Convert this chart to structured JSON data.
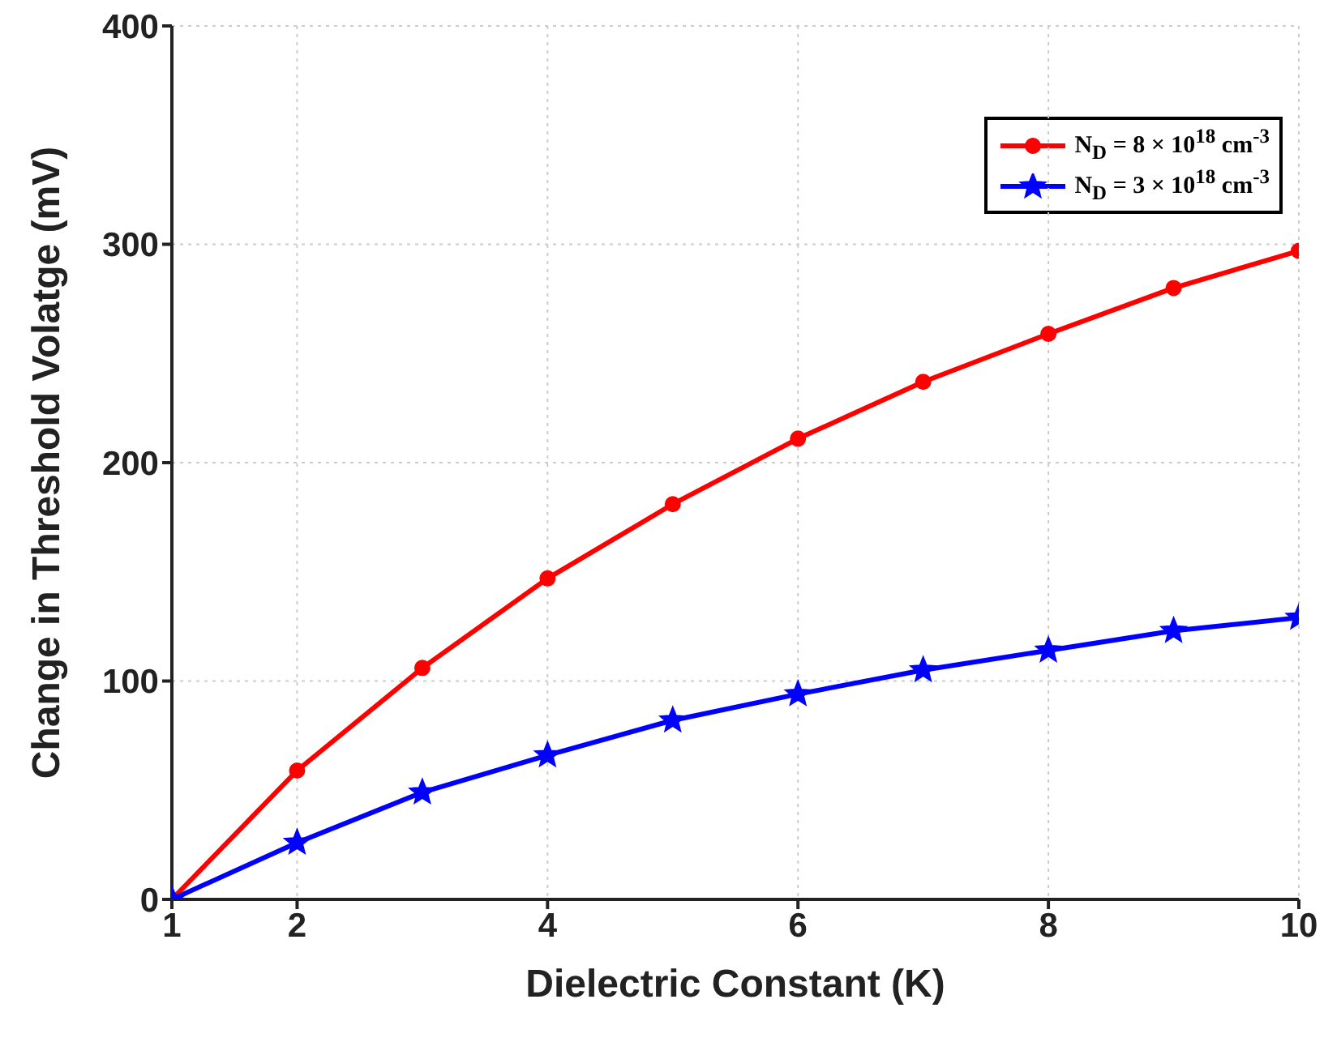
{
  "chart_data": {
    "type": "line",
    "xlabel": "Dielectric Constant (K)",
    "ylabel": "Change in Threshold Volatge (mV)",
    "x": [
      1,
      2,
      3,
      4,
      5,
      6,
      7,
      8,
      9,
      10
    ],
    "series": [
      {
        "name": "N$_{D}$ = 8 × 10$^{18}$ cm$^{-3}$",
        "color": "#ff0000",
        "marker": "circle",
        "values": [
          0,
          59,
          106,
          147,
          181,
          211,
          237,
          259,
          280,
          297
        ]
      },
      {
        "name": "N$_{D}$ = 3 × 10$^{18}$ cm$^{-3}$",
        "color": "#0000ff",
        "marker": "star",
        "values": [
          0,
          26,
          49,
          66,
          82,
          94,
          105,
          114,
          123,
          129
        ]
      }
    ],
    "xlim": [
      1,
      10
    ],
    "xticks": [
      1,
      2,
      4,
      6,
      8,
      10
    ],
    "ylim": [
      0,
      400
    ],
    "yticks": [
      0,
      100,
      200,
      300,
      400
    ],
    "grid": true,
    "legend": "top right",
    "line_style": "solid"
  }
}
